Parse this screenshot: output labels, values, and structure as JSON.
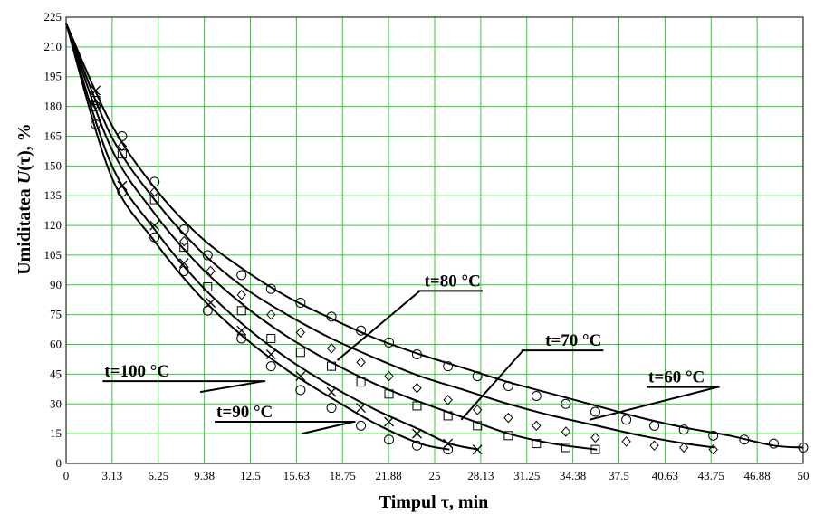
{
  "chart_data": {
    "type": "scatter",
    "xlabel": "Timpul τ, min",
    "ylabel_prefix": "Umiditatea ",
    "ylabel_func": "U",
    "ylabel_suffix": "(τ), %",
    "xlim": [
      0,
      50
    ],
    "ylim": [
      0,
      225
    ],
    "grid": true,
    "x_ticks": [
      "0",
      "3.13",
      "6.25",
      "9.38",
      "12.5",
      "15.63",
      "18.75",
      "21.88",
      "25",
      "28.13",
      "31.25",
      "34.38",
      "37.5",
      "40.63",
      "43.75",
      "46.88",
      "50"
    ],
    "y_ticks": [
      "0",
      "15",
      "30",
      "45",
      "60",
      "75",
      "90",
      "105",
      "120",
      "135",
      "150",
      "165",
      "180",
      "195",
      "210",
      "225"
    ],
    "colors": {
      "grid": "#33cc33",
      "curve": "#000000",
      "marker": "#000000"
    },
    "series": [
      {
        "name": "t=60 °C",
        "marker": "circle",
        "x": [
          2,
          3.8,
          6,
          8,
          9.6,
          11.9,
          13.9,
          15.9,
          18,
          20,
          21.9,
          23.8,
          25.9,
          27.9,
          30,
          31.9,
          33.9,
          35.9,
          38,
          39.9,
          41.9,
          43.9,
          46,
          48,
          50
        ],
        "y": [
          180,
          165,
          142,
          118,
          105,
          95,
          88,
          81,
          74,
          67,
          61,
          55,
          49,
          44,
          39,
          34,
          30,
          26,
          22,
          19,
          17,
          14,
          12,
          10,
          8
        ],
        "curve_x": [
          0,
          3,
          6,
          9,
          12,
          15,
          18,
          21,
          24,
          27,
          30,
          33,
          36,
          39,
          42,
          45,
          48,
          50
        ],
        "curve_y": [
          222,
          172,
          139,
          115,
          98,
          84,
          73,
          63,
          55,
          48,
          41,
          35,
          29,
          23,
          18,
          14,
          9,
          8
        ],
        "label_x": 39.5,
        "label_y": 38.5,
        "leader": [
          [
            35.5,
            22
          ],
          [
            44.2,
            36
          ]
        ]
      },
      {
        "name": "t=70 °C",
        "marker": "diamond",
        "x": [
          2,
          3.8,
          6,
          8,
          9.8,
          11.9,
          13.9,
          15.9,
          18,
          20,
          21.9,
          23.8,
          25.9,
          27.9,
          30,
          31.9,
          33.9,
          35.9,
          38,
          39.9,
          41.9,
          43.9
        ],
        "y": [
          181,
          160,
          137,
          112,
          97,
          85,
          75,
          66,
          58,
          51,
          44,
          38,
          32,
          27,
          23,
          19,
          16,
          13,
          11,
          9,
          8,
          7
        ],
        "curve_x": [
          0,
          3,
          6,
          9,
          12,
          15,
          18,
          21,
          24,
          27,
          30,
          33,
          36,
          39,
          42,
          44
        ],
        "curve_y": [
          222,
          166,
          133,
          108,
          89,
          75,
          63,
          53,
          44,
          37,
          30,
          24,
          19,
          14,
          10,
          8
        ],
        "label_x": 32.5,
        "label_y": 57,
        "leader": [
          [
            26.8,
            22
          ],
          [
            31,
            41
          ]
        ]
      },
      {
        "name": "t=80 °C",
        "marker": "square",
        "x": [
          2,
          3.8,
          6,
          8,
          9.6,
          11.9,
          13.9,
          15.9,
          18,
          20,
          21.9,
          23.8,
          25.9,
          27.9,
          30,
          31.9,
          33.9,
          35.9
        ],
        "y": [
          183,
          156,
          133,
          109,
          89,
          77,
          63,
          56,
          49,
          41,
          35,
          29,
          24,
          19,
          14,
          10,
          8,
          7
        ],
        "curve_x": [
          0,
          3,
          6,
          9,
          12,
          15,
          18,
          21,
          24,
          27,
          30,
          33,
          36
        ],
        "curve_y": [
          222,
          160,
          126,
          100,
          80,
          64,
          51,
          40,
          31,
          23,
          15,
          10,
          7
        ],
        "label_x": 24.3,
        "label_y": 87,
        "leader": [
          [
            18.4,
            52
          ],
          [
            24,
            79
          ]
        ]
      },
      {
        "name": "t=90 °C",
        "marker": "x",
        "x": [
          2,
          3.8,
          6,
          8,
          9.8,
          11.9,
          13.9,
          15.9,
          18,
          20,
          21.9,
          23.8,
          25.9,
          27.9
        ],
        "y": [
          188,
          140,
          120,
          101,
          81,
          67,
          55,
          44,
          36,
          28,
          21,
          15,
          10,
          7
        ],
        "curve_x": [
          0,
          3,
          6,
          9,
          12,
          15,
          18,
          21,
          24,
          26,
          28
        ],
        "curve_y": [
          222,
          152,
          118,
          91,
          70,
          53,
          39,
          27,
          17,
          10,
          7
        ],
        "label_x": 10.2,
        "label_y": 21,
        "leader": [
          [
            16,
            15
          ],
          [
            19.5,
            29
          ]
        ]
      },
      {
        "name": "t=100 °C",
        "marker": "circle",
        "x": [
          2,
          3.8,
          6,
          8,
          9.6,
          11.9,
          13.9,
          15.9,
          18,
          20,
          21.9,
          23.8,
          25.9
        ],
        "y": [
          171,
          137,
          114,
          97,
          77,
          63,
          49,
          37,
          28,
          19,
          12,
          9,
          7
        ],
        "curve_x": [
          0,
          3,
          6,
          9,
          12,
          15,
          18,
          21,
          24,
          26
        ],
        "curve_y": [
          222,
          146,
          112,
          85,
          64,
          47,
          33,
          20,
          10,
          7
        ],
        "label_x": 2.6,
        "label_y": 41.5,
        "leader": [
          [
            9.1,
            36
          ],
          [
            13.4,
            52
          ]
        ]
      }
    ]
  }
}
